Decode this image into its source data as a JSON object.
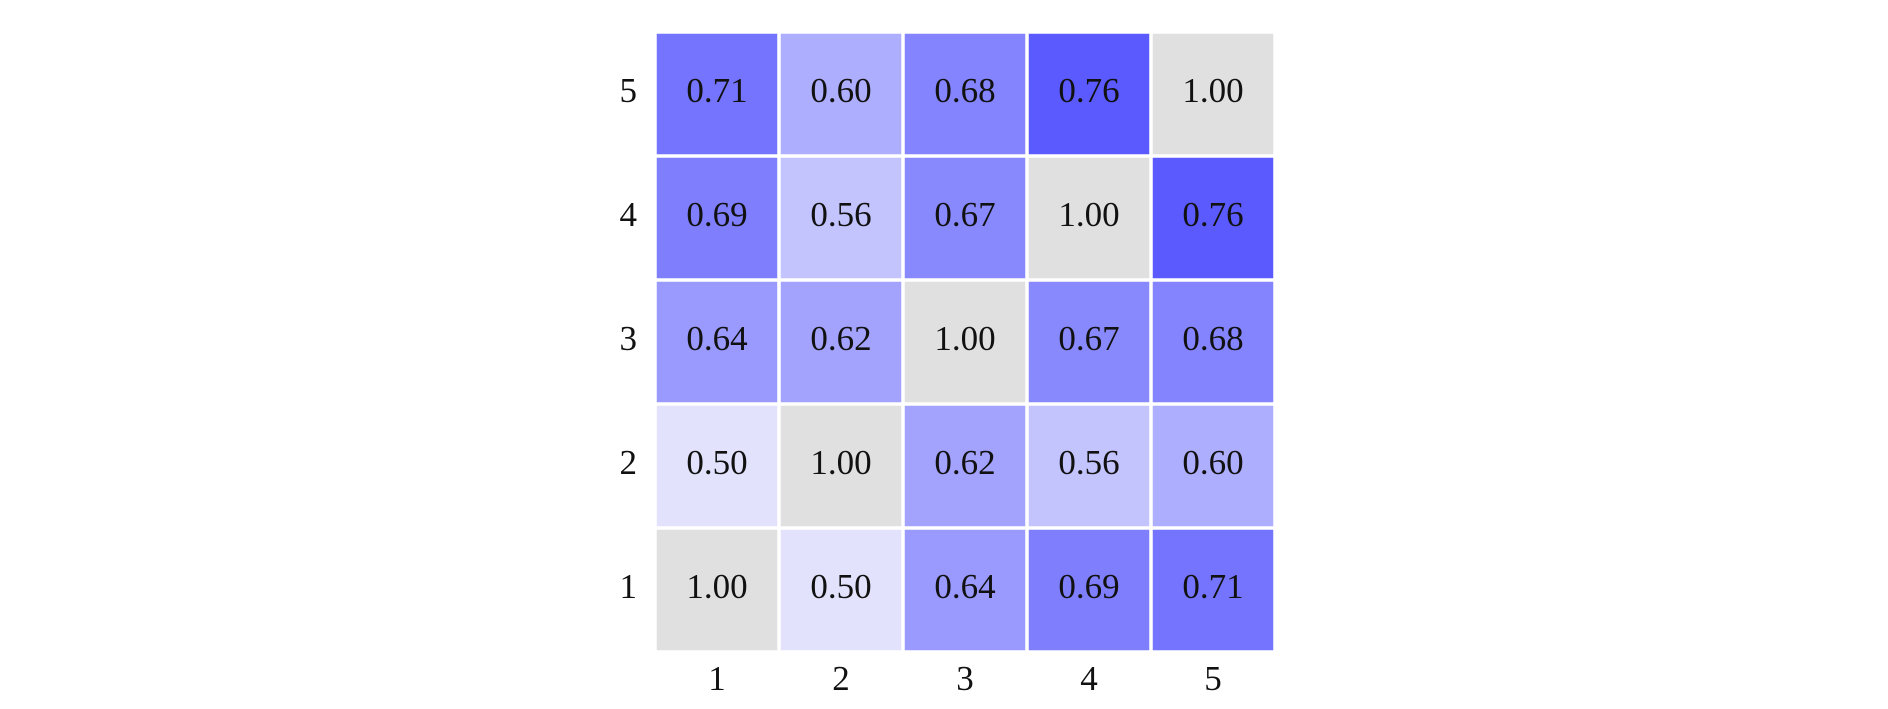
{
  "chart_data": {
    "type": "heatmap",
    "x_categories": [
      "1",
      "2",
      "3",
      "4",
      "5"
    ],
    "y_categories": [
      "1",
      "2",
      "3",
      "4",
      "5"
    ],
    "values": [
      [
        1.0,
        0.5,
        0.64,
        0.69,
        0.71
      ],
      [
        0.5,
        1.0,
        0.62,
        0.56,
        0.6
      ],
      [
        0.64,
        0.62,
        1.0,
        0.67,
        0.68
      ],
      [
        0.69,
        0.56,
        0.67,
        1.0,
        0.76
      ],
      [
        0.71,
        0.6,
        0.68,
        0.76,
        1.0
      ]
    ],
    "value_labels": [
      [
        "1.00",
        "0.50",
        "0.64",
        "0.69",
        "0.71"
      ],
      [
        "0.50",
        "1.00",
        "0.62",
        "0.56",
        "0.60"
      ],
      [
        "0.64",
        "0.62",
        "1.00",
        "0.67",
        "0.68"
      ],
      [
        "0.69",
        "0.56",
        "0.67",
        "1.00",
        "0.76"
      ],
      [
        "0.71",
        "0.60",
        "0.68",
        "0.76",
        "1.00"
      ]
    ],
    "colormap": [
      "#e2e2fd",
      "#5a5aff"
    ],
    "diagonal_color": "#e0e0e0"
  }
}
